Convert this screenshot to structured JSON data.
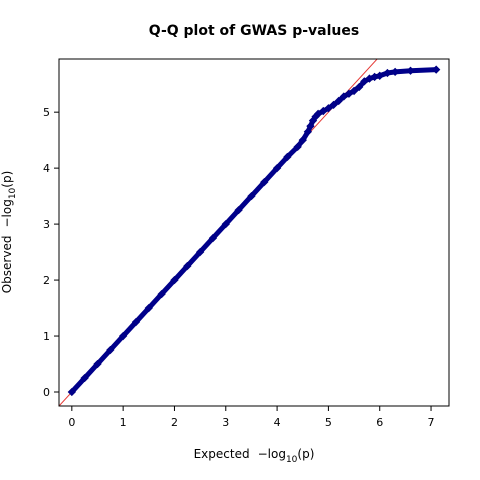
{
  "chart_data": {
    "type": "scatter",
    "title": "Q-Q plot of GWAS p-values",
    "xlabel": "Expected",
    "ylabel": "Observed",
    "axis_label_math": {
      "base": "−log",
      "sub": "10",
      "arg": "(p)"
    },
    "xlim": [
      -0.25,
      7.35
    ],
    "ylim": [
      -0.25,
      5.95
    ],
    "x_ticks": [
      "0",
      "1",
      "2",
      "3",
      "4",
      "5",
      "6",
      "7"
    ],
    "y_ticks": [
      "0",
      "1",
      "2",
      "3",
      "4",
      "5"
    ],
    "grid": false,
    "legend": "none",
    "reference_line": {
      "slope": 1,
      "intercept": 0,
      "color": "#e53935"
    },
    "marker": {
      "shape": "diamond",
      "fill": "#00008b",
      "stroke": "#000080"
    },
    "series": [
      {
        "x": [
          0,
          0.25,
          0.5,
          0.75,
          1.0,
          1.25,
          1.5,
          1.75,
          2.0,
          2.25,
          2.5,
          2.75,
          3.0,
          3.25,
          3.5,
          3.75,
          4.0,
          4.2,
          4.4,
          4.5,
          4.6,
          4.65,
          4.7,
          4.75,
          4.8,
          4.9,
          5.0,
          5.1,
          5.2,
          5.3,
          5.4,
          5.5,
          5.6,
          5.7,
          5.8,
          5.9,
          6.0,
          6.15,
          6.3,
          6.6,
          7.1
        ],
        "y": [
          0,
          0.25,
          0.5,
          0.75,
          1.0,
          1.25,
          1.5,
          1.75,
          2.0,
          2.25,
          2.5,
          2.75,
          3.0,
          3.25,
          3.5,
          3.75,
          4.0,
          4.2,
          4.38,
          4.5,
          4.65,
          4.75,
          4.85,
          4.92,
          4.97,
          5.02,
          5.07,
          5.13,
          5.2,
          5.28,
          5.33,
          5.38,
          5.45,
          5.55,
          5.6,
          5.63,
          5.65,
          5.7,
          5.72,
          5.74,
          5.76
        ]
      }
    ]
  }
}
